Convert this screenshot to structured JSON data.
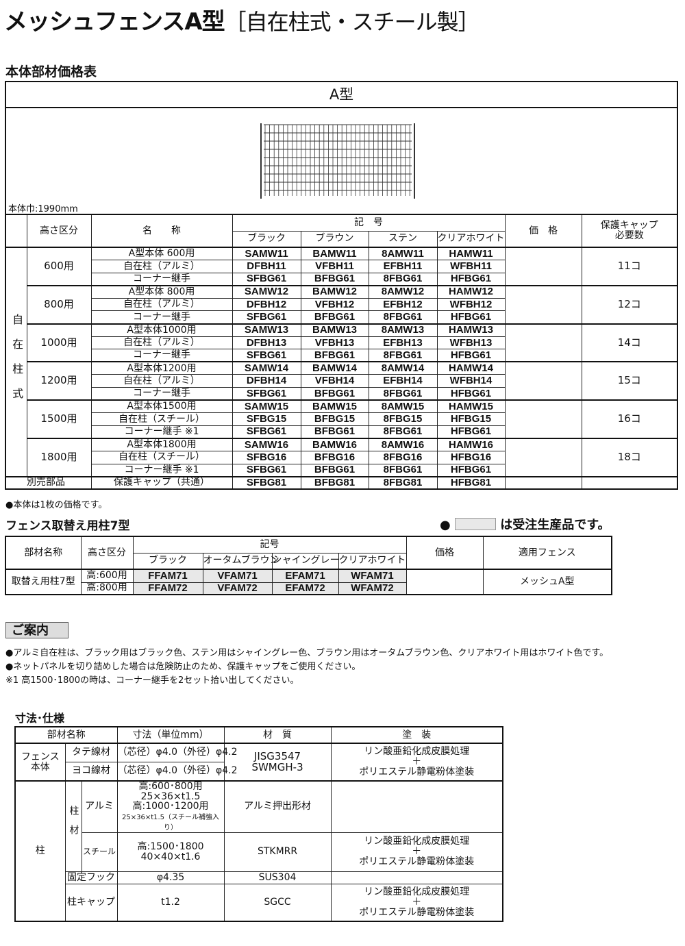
{
  "title": {
    "main": "メッシュフェンスA型",
    "sub": "［自在柱式・スチール製］"
  },
  "price_table": {
    "section_title": "本体部材価格表",
    "type_label": "A型",
    "width_note": "本体巾:1990mm",
    "headers": {
      "height": "高さ区分",
      "name": "名　　称",
      "code": "記　号",
      "colors": [
        "ブラック",
        "ブラウン",
        "ステン",
        "クリアホワイト"
      ],
      "price": "価　格",
      "cap": "保護キャップ\n必要数"
    },
    "group_label": "自在柱式",
    "groups": [
      {
        "height": "600用",
        "cap": "11コ",
        "rows": [
          [
            "A型本体 600用",
            "SAMW11",
            "BAMW11",
            "8AMW11",
            "HAMW11"
          ],
          [
            "自在柱（アルミ）",
            "DFBH11",
            "VFBH11",
            "EFBH11",
            "WFBH11"
          ],
          [
            "コーナー継手",
            "SFBG61",
            "BFBG61",
            "8FBG61",
            "HFBG61"
          ]
        ]
      },
      {
        "height": "800用",
        "cap": "12コ",
        "rows": [
          [
            "A型本体 800用",
            "SAMW12",
            "BAMW12",
            "8AMW12",
            "HAMW12"
          ],
          [
            "自在柱（アルミ）",
            "DFBH12",
            "VFBH12",
            "EFBH12",
            "WFBH12"
          ],
          [
            "コーナー継手",
            "SFBG61",
            "BFBG61",
            "8FBG61",
            "HFBG61"
          ]
        ]
      },
      {
        "height": "1000用",
        "cap": "14コ",
        "rows": [
          [
            "A型本体1000用",
            "SAMW13",
            "BAMW13",
            "8AMW13",
            "HAMW13"
          ],
          [
            "自在柱（アルミ）",
            "DFBH13",
            "VFBH13",
            "EFBH13",
            "WFBH13"
          ],
          [
            "コーナー継手",
            "SFBG61",
            "BFBG61",
            "8FBG61",
            "HFBG61"
          ]
        ]
      },
      {
        "height": "1200用",
        "cap": "15コ",
        "rows": [
          [
            "A型本体1200用",
            "SAMW14",
            "BAMW14",
            "8AMW14",
            "HAMW14"
          ],
          [
            "自在柱（アルミ）",
            "DFBH14",
            "VFBH14",
            "EFBH14",
            "WFBH14"
          ],
          [
            "コーナー継手",
            "SFBG61",
            "BFBG61",
            "8FBG61",
            "HFBG61"
          ]
        ]
      },
      {
        "height": "1500用",
        "cap": "16コ",
        "rows": [
          [
            "A型本体1500用",
            "SAMW15",
            "BAMW15",
            "8AMW15",
            "HAMW15"
          ],
          [
            "自在柱（スチール）",
            "SFBG15",
            "BFBG15",
            "8FBG15",
            "HFBG15"
          ],
          [
            "コーナー継手 ※1",
            "SFBG61",
            "BFBG61",
            "8FBG61",
            "HFBG61"
          ]
        ]
      },
      {
        "height": "1800用",
        "cap": "18コ",
        "rows": [
          [
            "A型本体1800用",
            "SAMW16",
            "BAMW16",
            "8AMW16",
            "HAMW16"
          ],
          [
            "自在柱（スチール）",
            "SFBG16",
            "BFBG16",
            "8FBG16",
            "HFBG16"
          ],
          [
            "コーナー継手 ※1",
            "SFBG61",
            "BFBG61",
            "8FBG61",
            "HFBG61"
          ]
        ]
      }
    ],
    "extra": {
      "label": "別売部品",
      "name": "保護キャップ（共通）",
      "codes": [
        "SFBG81",
        "BFBG81",
        "8FBG81",
        "HFBG81"
      ]
    },
    "footnote": "●本体は1枚の価格です。"
  },
  "post_table": {
    "section_title": "フェンス取替え用柱7型",
    "legend": "は受注生産品です。",
    "headers": {
      "part": "部材名称",
      "height": "高さ区分",
      "code": "記号",
      "colors": [
        "ブラック",
        "オータムブラウン",
        "シャイングレー",
        "クリアホワイト"
      ],
      "price": "価格",
      "fence": "適用フェンス"
    },
    "part": "取替え用柱7型",
    "rows": [
      [
        "高:600用",
        "FFAM71",
        "VFAM71",
        "EFAM71",
        "WFAM71"
      ],
      [
        "高:800用",
        "FFAM72",
        "VFAM72",
        "EFAM72",
        "WFAM72"
      ]
    ],
    "fence": "メッシュA型"
  },
  "guide": {
    "title": "ご案内",
    "lines": [
      "●アルミ自在柱は、ブラック用はブラック色、ステン用はシャイングレー色、ブラウン用はオータムブラウン色、クリアホワイト用はホワイト色です。",
      "●ネットパネルを切り詰めした場合は危険防止のため、保護キャップをご使用ください。",
      "※1  高1500･1800の時は、コーナー継手を2セット拾い出してください。"
    ]
  },
  "spec": {
    "section_title": "寸法･仕様",
    "headers": [
      "部材名称",
      "寸法（単位mm）",
      "材　質",
      "塗　装"
    ],
    "fence_body": "フェンス\n本体",
    "tate": "タテ線材",
    "yoko": "ヨコ線材",
    "wire_dim": "（芯径）φ4.0（外径）φ4.2",
    "wire_mat": "JISG3547\nSWMGH-3",
    "coating": "リン酸亜鉛化成皮膜処理\n＋\nポリエステル静電粉体塗装",
    "post": "柱",
    "post_mat_label": "柱材",
    "alumi": "アルミ",
    "alumi_dim": "高:600･800用\n25×36×t1.5\n高:1000･1200用",
    "alumi_dim_small": "25×36×t1.5（スチール補強入り）",
    "alumi_mat": "アルミ押出形材",
    "steel": "スチール",
    "steel_dim": "高:1500･1800\n40×40×t1.6",
    "steel_mat": "STKMRR",
    "hook": "固定フック",
    "hook_dim": "φ4.35",
    "hook_mat": "SUS304",
    "cap": "柱キャップ",
    "cap_dim": "t1.2",
    "cap_mat": "SGCC"
  },
  "colors": {
    "made_to_order": "#e8e8e8",
    "border": "#222222"
  }
}
